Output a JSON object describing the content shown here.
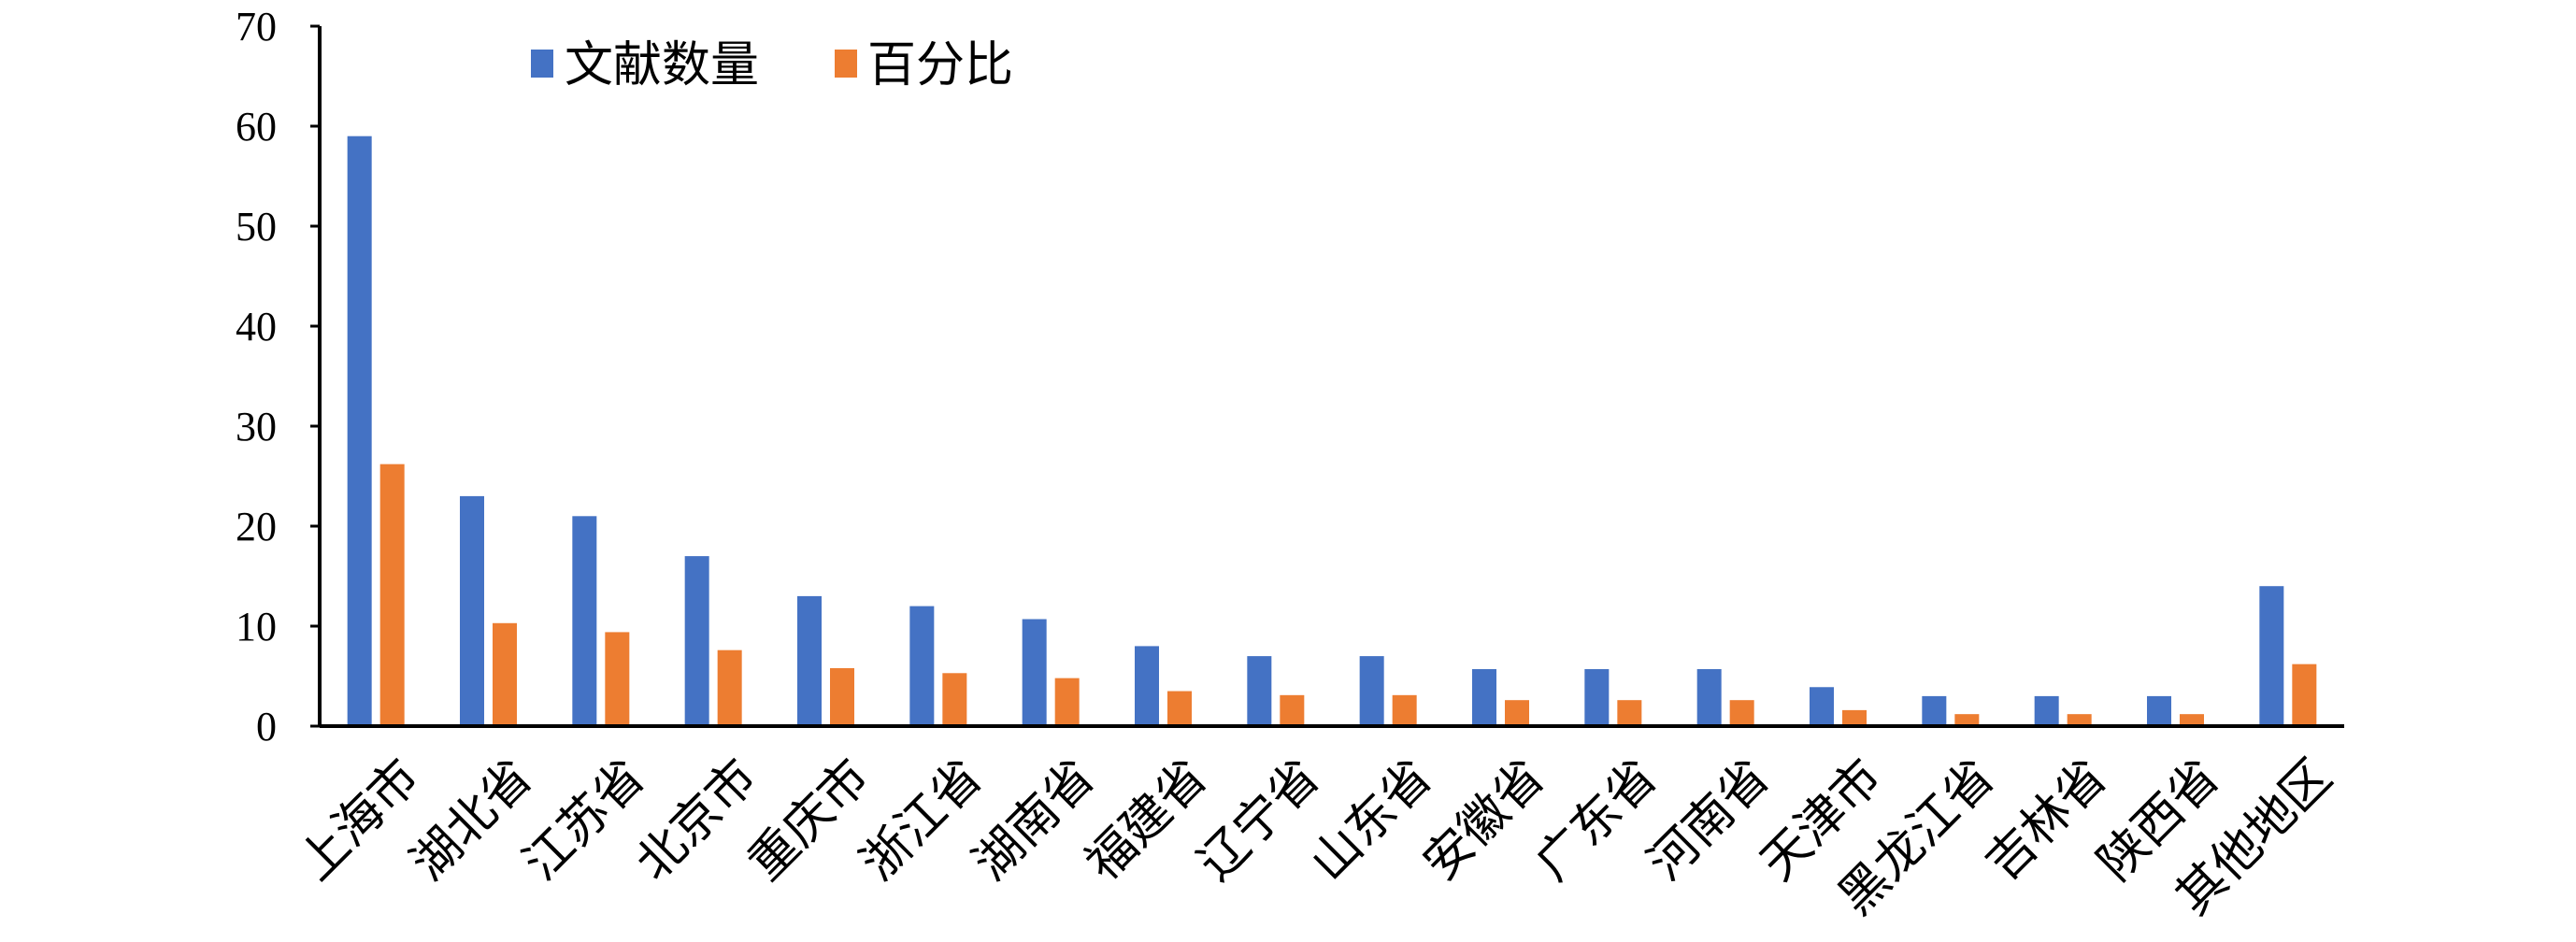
{
  "chart_data": {
    "type": "bar",
    "categories": [
      "上海市",
      "湖北省",
      "江苏省",
      "北京市",
      "重庆市",
      "浙江省",
      "湖南省",
      "福建省",
      "辽宁省",
      "山东省",
      "安徽省",
      "广东省",
      "河南省",
      "天津市",
      "黑龙江省",
      "吉林省",
      "陕西省",
      "其他地区"
    ],
    "series": [
      {
        "name": "文献数量",
        "color": "#4472c4",
        "values": [
          59,
          23,
          21,
          17,
          13,
          12,
          10.7,
          8,
          7,
          7,
          5.7,
          5.7,
          5.7,
          3.9,
          3,
          3,
          3,
          14
        ]
      },
      {
        "name": "百分比",
        "color": "#ed7d31",
        "values": [
          26.2,
          10.3,
          9.4,
          7.6,
          5.8,
          5.3,
          4.8,
          3.5,
          3.1,
          3.1,
          2.6,
          2.6,
          2.6,
          1.6,
          1.2,
          1.2,
          1.2,
          6.2
        ]
      }
    ],
    "yticks": [
      "0",
      "10",
      "20",
      "30",
      "40",
      "50",
      "60",
      "70"
    ],
    "ylim": [
      0,
      70
    ],
    "legend_position": "top-left",
    "grid": false
  }
}
